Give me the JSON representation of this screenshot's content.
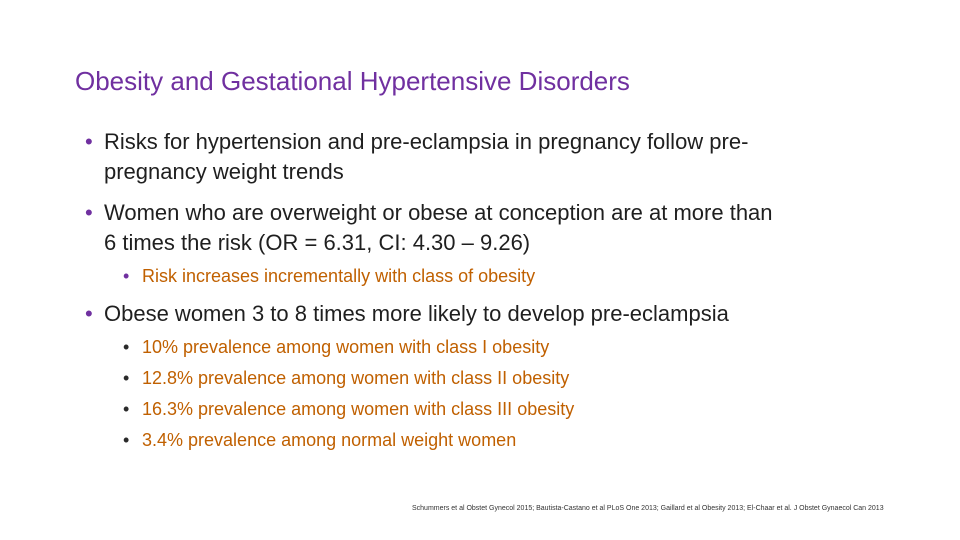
{
  "slide": {
    "title": "Obesity and Gestational Hypertensive Disorders",
    "bullet_glyph": "•",
    "bullets": [
      {
        "line1": "Risks for hypertension and pre-eclampsia in pregnancy follow pre-",
        "line2": "pregnancy weight trends"
      },
      {
        "line1": "Women who are overweight or obese at conception are at more than",
        "line2": "6 times the risk (OR = 6.31, CI: 4.30 – 9.26)",
        "sub": [
          "Risk increases incrementally with class of obesity"
        ]
      },
      {
        "line1": "Obese women 3 to 8 times more likely to develop pre-eclampsia",
        "sub": [
          "10% prevalence among women with class I obesity",
          "12.8% prevalence among women with class II obesity",
          "16.3% prevalence among women with class III obesity",
          "3.4% prevalence among normal weight women"
        ]
      }
    ],
    "footer": "Schummers et al Obstet Gynecol 2015; Bautista-Castano et al PLoS One 2013; Gaillard et al Obesity 2013; El-Chaar et al. J Obstet Gynaecol Can 2013"
  },
  "colors": {
    "title": "#7030a0",
    "body_text": "#1f1f1f",
    "sub_text": "#2a2a2a",
    "bullet_purple": "#7030a0",
    "bullet_brown": "#c06000",
    "slide_background": "#ffffff"
  }
}
